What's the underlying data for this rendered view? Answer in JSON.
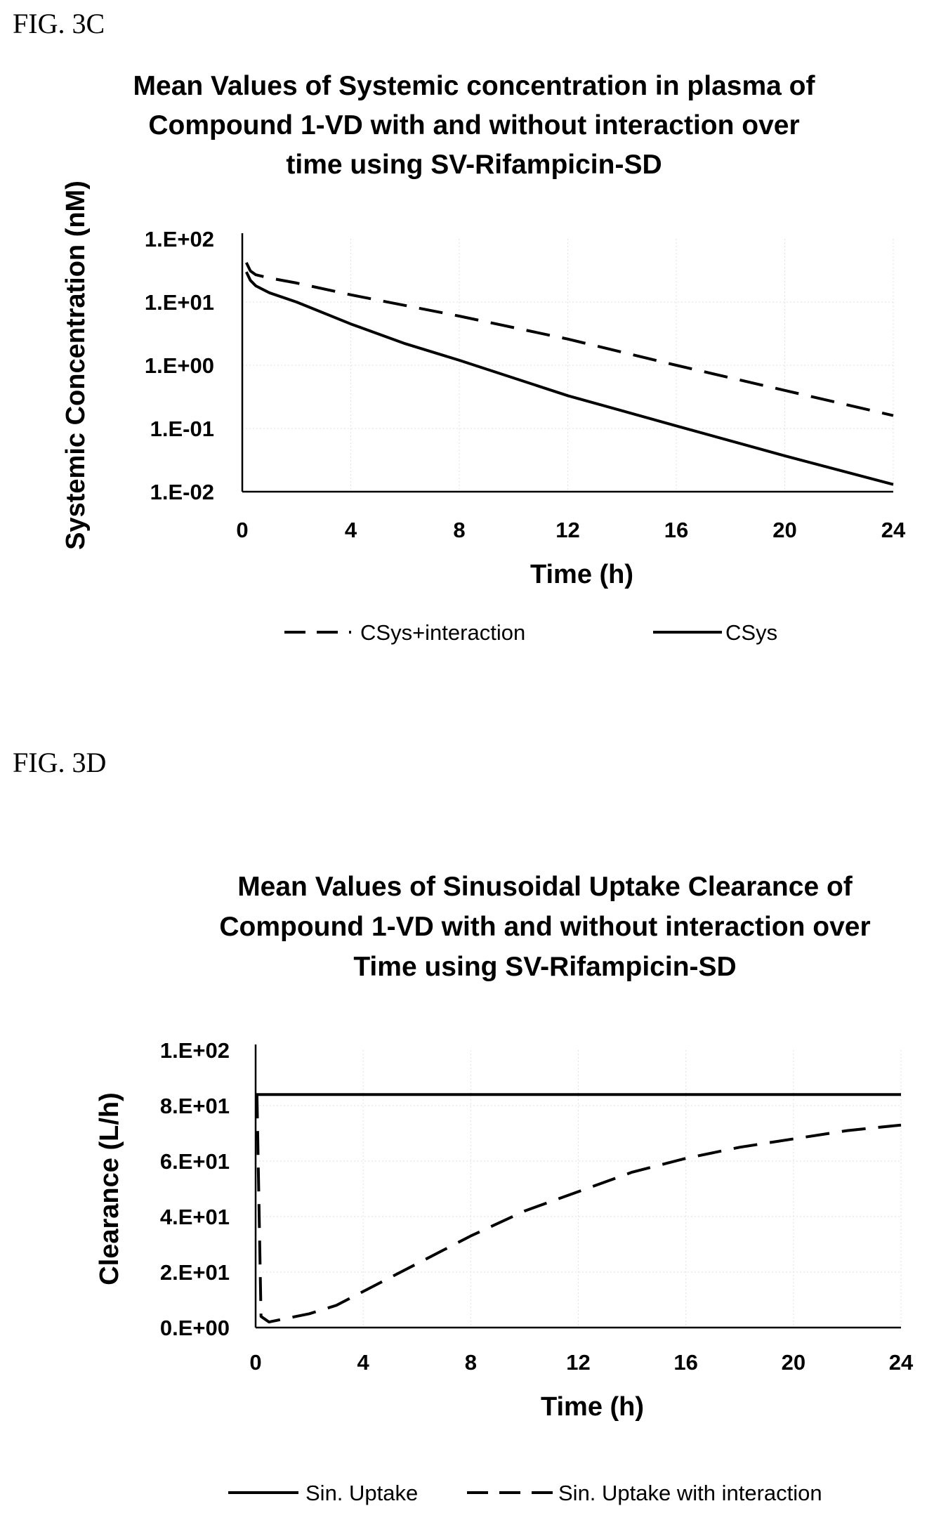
{
  "figures": [
    {
      "label": "FIG. 3C"
    },
    {
      "label": "FIG. 3D"
    }
  ],
  "chart_data": [
    {
      "type": "line",
      "title_lines": [
        "Mean Values of Systemic concentration in plasma of",
        "Compound 1-VD with and without interaction over",
        "time using SV-Rifampicin-SD"
      ],
      "xlabel": "Time (h)",
      "ylabel": "Systemic Concentration (nM)",
      "yscale": "log",
      "xlim": [
        0,
        24
      ],
      "ylim": [
        0.01,
        100
      ],
      "xticks": [
        "0",
        "4",
        "8",
        "12",
        "16",
        "20",
        "24"
      ],
      "yticks": [
        "1.E+02",
        "1.E+01",
        "1.E+00",
        "1.E-01",
        "1.E-02"
      ],
      "legend_position": "bottom",
      "series": [
        {
          "name": "CSys+interaction",
          "style": "dashed",
          "color": "#000000",
          "x": [
            0.15,
            0.3,
            0.5,
            1,
            2,
            4,
            8,
            12,
            16,
            20,
            24
          ],
          "y": [
            42,
            31,
            27,
            24,
            20,
            13,
            6,
            2.6,
            1.0,
            0.4,
            0.16
          ]
        },
        {
          "name": "CSys",
          "style": "solid",
          "color": "#000000",
          "x": [
            0.15,
            0.3,
            0.5,
            1,
            2,
            4,
            6,
            8,
            12,
            16,
            20,
            24
          ],
          "y": [
            30,
            22,
            18,
            14,
            10,
            4.5,
            2.2,
            1.2,
            0.33,
            0.11,
            0.037,
            0.013
          ]
        }
      ]
    },
    {
      "type": "line",
      "title_lines": [
        "Mean Values of Sinusoidal Uptake Clearance of",
        "Compound 1-VD with and without interaction over",
        "Time using SV-Rifampicin-SD"
      ],
      "xlabel": "Time (h)",
      "ylabel": "Clearance (L/h)",
      "yscale": "linear",
      "xlim": [
        0,
        24
      ],
      "ylim": [
        0,
        100
      ],
      "xticks": [
        "0",
        "4",
        "8",
        "12",
        "16",
        "20",
        "24"
      ],
      "yticks": [
        "1.E+02",
        "8.E+01",
        "6.E+01",
        "4.E+01",
        "2.E+01",
        "0.E+00"
      ],
      "legend_position": "bottom",
      "series": [
        {
          "name": "Sin. Uptake",
          "style": "solid",
          "color": "#000000",
          "x": [
            0,
            0.1,
            24
          ],
          "y": [
            84,
            84,
            84
          ]
        },
        {
          "name": "Sin. Uptake with interaction",
          "style": "dashed",
          "color": "#000000",
          "x": [
            0.05,
            0.2,
            0.5,
            1,
            2,
            3,
            4,
            6,
            8,
            10,
            12,
            14,
            16,
            18,
            20,
            22,
            24
          ],
          "y": [
            84,
            4,
            2,
            3,
            5,
            8,
            13,
            23,
            33,
            42,
            49,
            56,
            61,
            65,
            68,
            71,
            73
          ]
        }
      ]
    }
  ]
}
